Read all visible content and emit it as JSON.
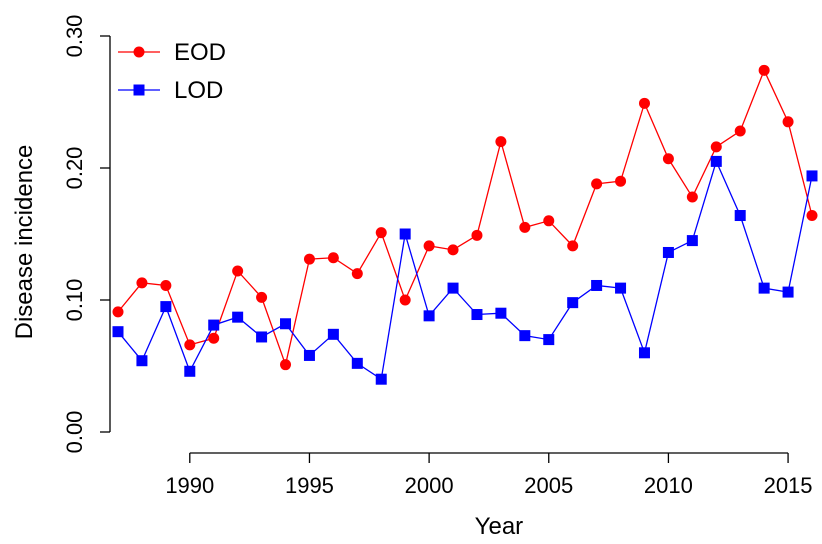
{
  "chart_data": {
    "type": "line",
    "title": "",
    "xlabel": "Year",
    "ylabel": "Disease incidence",
    "xlim": [
      1987,
      2016
    ],
    "ylim": [
      0.0,
      0.3
    ],
    "xticks": [
      1990,
      1995,
      2000,
      2005,
      2010,
      2015
    ],
    "yticks": [
      0.0,
      0.1,
      0.2,
      0.3
    ],
    "ytick_labels": [
      "0.00",
      "0.10",
      "0.20",
      "0.30"
    ],
    "grid": false,
    "legend": {
      "position": "top-left"
    },
    "x": [
      1987,
      1988,
      1989,
      1990,
      1991,
      1992,
      1993,
      1994,
      1995,
      1996,
      1997,
      1998,
      1999,
      2000,
      2001,
      2002,
      2003,
      2004,
      2005,
      2006,
      2007,
      2008,
      2009,
      2010,
      2011,
      2012,
      2013,
      2014,
      2015,
      2016
    ],
    "series": [
      {
        "name": "EOD",
        "color": "#ff0000",
        "marker": "circle",
        "values": [
          0.091,
          0.113,
          0.111,
          0.066,
          0.071,
          0.122,
          0.102,
          0.051,
          0.131,
          0.132,
          0.12,
          0.151,
          0.1,
          0.141,
          0.138,
          0.149,
          0.22,
          0.155,
          0.16,
          0.141,
          0.188,
          0.19,
          0.249,
          0.207,
          0.178,
          0.216,
          0.228,
          0.274,
          0.235,
          0.164
        ]
      },
      {
        "name": "LOD",
        "color": "#0000ff",
        "marker": "square",
        "values": [
          0.076,
          0.054,
          0.095,
          0.046,
          0.081,
          0.087,
          0.072,
          0.082,
          0.058,
          0.074,
          0.052,
          0.04,
          0.15,
          0.088,
          0.109,
          0.089,
          0.09,
          0.073,
          0.07,
          0.098,
          0.111,
          0.109,
          0.06,
          0.136,
          0.145,
          0.205,
          0.164,
          0.109,
          0.106,
          0.194
        ]
      }
    ]
  }
}
